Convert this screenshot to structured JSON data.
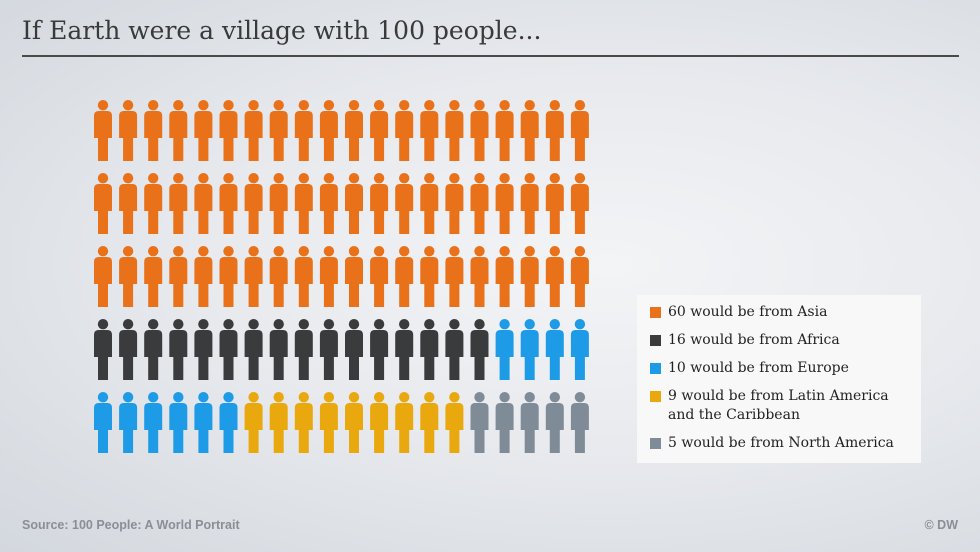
{
  "title": "If Earth were a village with 100 people...",
  "source": "Source: 100 People: A World Portrait",
  "credit": "© DW",
  "chart_data": {
    "type": "pictogram",
    "total": 100,
    "rows": 5,
    "columns": 20,
    "categories": [
      {
        "label": "60 would be from Asia",
        "value": 60,
        "color": "#e8711a"
      },
      {
        "label": "16 would be from Africa",
        "value": 16,
        "color": "#3a3b3d"
      },
      {
        "label": "10 would be from Europe",
        "value": 10,
        "color": "#1e9be6"
      },
      {
        "label": "9 would be from Latin America\nand the Caribbean",
        "value": 9,
        "color": "#e9a90e"
      },
      {
        "label": "5 would be from North America",
        "value": 5,
        "color": "#7f8c97"
      }
    ],
    "icon": "person-icon",
    "legend_position": "right"
  }
}
